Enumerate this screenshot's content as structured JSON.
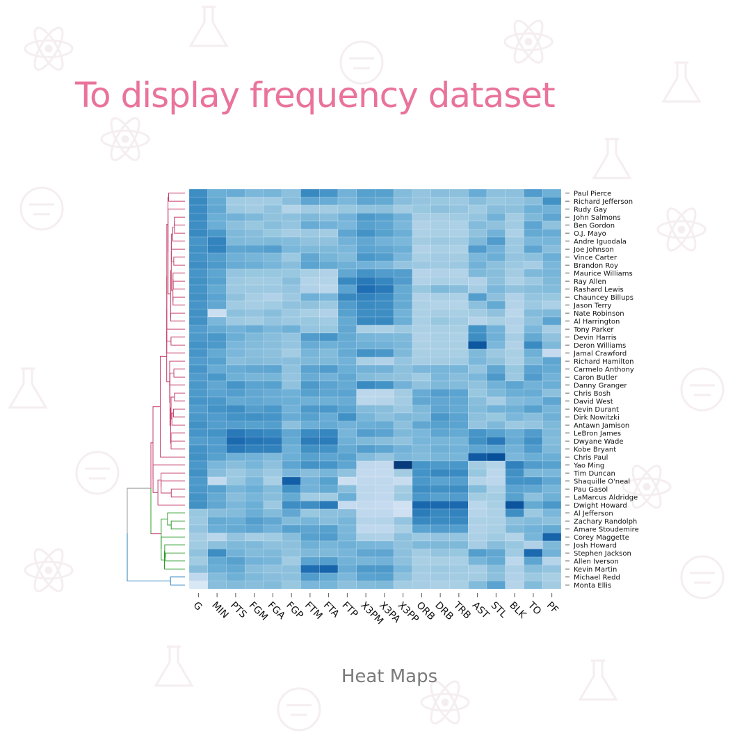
{
  "headline": "To display frequency dataset",
  "caption": "Heat Maps",
  "colors": {
    "headline": "#e9739b",
    "caption": "#7a7a7a",
    "heat_low": "#f7fbff",
    "heat_high": "#08306b",
    "tree_red": "#c43c68",
    "tree_green": "#2e9b2e",
    "tree_blue": "#2a7fbf",
    "tree_gray": "#999999",
    "background_doodles": "#f5eef1"
  },
  "background_icons": [
    "atom-icon",
    "flask-icon",
    "rocket-icon",
    "magnet-icon",
    "lightbulb-icon",
    "molecule-icon",
    "dna-icon",
    "beaker-icon"
  ],
  "chart_data": {
    "type": "heatmap",
    "title": "",
    "xlabel": "",
    "ylabel": "",
    "color_scale": "Blues",
    "value_range": [
      0,
      1
    ],
    "columns": [
      "G",
      "MIN",
      "PTS",
      "FGM",
      "FGA",
      "FGP",
      "FTM",
      "FTA",
      "FTP",
      "X3PM",
      "X3PA",
      "X3PP",
      "ORB",
      "DRB",
      "TRB",
      "AST",
      "STL",
      "BLK",
      "TO",
      "PF"
    ],
    "rows": [
      "Paul Pierce",
      "Richard Jefferson",
      "Rudy Gay",
      "John Salmons",
      "Ben Gordon",
      "O.J. Mayo",
      "Andre Iguodala",
      "Joe Johnson",
      "Vince Carter",
      "Brandon Roy",
      "Maurice Williams",
      "Ray Allen",
      "Rashard Lewis",
      "Chauncey Billups",
      "Jason Terry",
      "Nate Robinson",
      "Al Harrington",
      "Tony Parker",
      "Devin Harris",
      "Deron Williams",
      "Jamal Crawford",
      "Richard Hamilton",
      "Carmelo Anthony",
      "Caron Butler",
      "Danny Granger",
      "Chris Bosh",
      "David West",
      "Kevin Durant",
      "Dirk Nowitzki",
      "Antawn Jamison",
      "LeBron James",
      "Dwyane Wade",
      "Kobe Bryant",
      "Chris Paul",
      "Yao Ming",
      "Tim Duncan",
      "Shaquille O'neal",
      "Pau Gasol",
      "LaMarcus Aldridge",
      "Dwight Howard",
      "Al Jefferson",
      "Zachary Randolph",
      "Amare Stoudemire",
      "Corey Maggette",
      "Josh Howard",
      "Stephen Jackson",
      "Allen Iverson",
      "Kevin Martin",
      "Michael Redd",
      "Monta Ellis"
    ],
    "values": [
      [
        0.64,
        0.5,
        0.51,
        0.46,
        0.47,
        0.42,
        0.66,
        0.61,
        0.48,
        0.56,
        0.56,
        0.44,
        0.4,
        0.43,
        0.42,
        0.51,
        0.42,
        0.42,
        0.58,
        0.49
      ],
      [
        0.66,
        0.52,
        0.37,
        0.36,
        0.37,
        0.43,
        0.54,
        0.51,
        0.46,
        0.54,
        0.52,
        0.43,
        0.4,
        0.39,
        0.38,
        0.43,
        0.39,
        0.4,
        0.43,
        0.63
      ],
      [
        0.65,
        0.53,
        0.38,
        0.36,
        0.41,
        0.31,
        0.37,
        0.36,
        0.39,
        0.41,
        0.42,
        0.36,
        0.39,
        0.42,
        0.4,
        0.37,
        0.43,
        0.42,
        0.49,
        0.48
      ],
      [
        0.65,
        0.5,
        0.48,
        0.45,
        0.41,
        0.42,
        0.45,
        0.43,
        0.48,
        0.59,
        0.56,
        0.48,
        0.35,
        0.35,
        0.37,
        0.4,
        0.48,
        0.36,
        0.45,
        0.54
      ],
      [
        0.64,
        0.5,
        0.42,
        0.39,
        0.43,
        0.4,
        0.51,
        0.48,
        0.46,
        0.56,
        0.54,
        0.46,
        0.32,
        0.34,
        0.33,
        0.44,
        0.41,
        0.37,
        0.54,
        0.41
      ],
      [
        0.66,
        0.6,
        0.45,
        0.43,
        0.39,
        0.35,
        0.38,
        0.36,
        0.54,
        0.62,
        0.56,
        0.5,
        0.33,
        0.34,
        0.33,
        0.41,
        0.48,
        0.33,
        0.52,
        0.51
      ],
      [
        0.61,
        0.68,
        0.45,
        0.44,
        0.45,
        0.44,
        0.41,
        0.41,
        0.48,
        0.53,
        0.48,
        0.46,
        0.36,
        0.38,
        0.37,
        0.45,
        0.58,
        0.38,
        0.46,
        0.47
      ],
      [
        0.63,
        0.68,
        0.54,
        0.55,
        0.57,
        0.46,
        0.45,
        0.45,
        0.46,
        0.55,
        0.53,
        0.5,
        0.32,
        0.34,
        0.33,
        0.58,
        0.48,
        0.38,
        0.54,
        0.43
      ],
      [
        0.62,
        0.57,
        0.49,
        0.47,
        0.45,
        0.38,
        0.53,
        0.47,
        0.44,
        0.6,
        0.57,
        0.46,
        0.34,
        0.37,
        0.36,
        0.46,
        0.5,
        0.4,
        0.42,
        0.5
      ],
      [
        0.64,
        0.59,
        0.51,
        0.5,
        0.47,
        0.43,
        0.55,
        0.52,
        0.49,
        0.48,
        0.46,
        0.4,
        0.38,
        0.37,
        0.38,
        0.48,
        0.42,
        0.38,
        0.35,
        0.46
      ],
      [
        0.61,
        0.54,
        0.4,
        0.39,
        0.39,
        0.39,
        0.34,
        0.32,
        0.53,
        0.62,
        0.58,
        0.57,
        0.3,
        0.32,
        0.31,
        0.45,
        0.43,
        0.36,
        0.45,
        0.47
      ],
      [
        0.63,
        0.56,
        0.38,
        0.36,
        0.37,
        0.43,
        0.31,
        0.31,
        0.66,
        0.72,
        0.67,
        0.58,
        0.32,
        0.34,
        0.33,
        0.32,
        0.42,
        0.33,
        0.38,
        0.45
      ],
      [
        0.62,
        0.52,
        0.38,
        0.38,
        0.38,
        0.4,
        0.32,
        0.29,
        0.55,
        0.76,
        0.72,
        0.52,
        0.39,
        0.45,
        0.43,
        0.35,
        0.46,
        0.41,
        0.43,
        0.44
      ],
      [
        0.63,
        0.55,
        0.41,
        0.35,
        0.32,
        0.38,
        0.49,
        0.46,
        0.66,
        0.68,
        0.65,
        0.52,
        0.32,
        0.34,
        0.33,
        0.57,
        0.42,
        0.32,
        0.4,
        0.39
      ],
      [
        0.61,
        0.53,
        0.37,
        0.35,
        0.37,
        0.41,
        0.41,
        0.38,
        0.58,
        0.65,
        0.64,
        0.52,
        0.33,
        0.31,
        0.31,
        0.42,
        0.52,
        0.31,
        0.38,
        0.33
      ],
      [
        0.63,
        0.22,
        0.42,
        0.4,
        0.43,
        0.38,
        0.34,
        0.32,
        0.56,
        0.64,
        0.64,
        0.48,
        0.33,
        0.35,
        0.34,
        0.36,
        0.41,
        0.29,
        0.44,
        0.45
      ],
      [
        0.63,
        0.46,
        0.38,
        0.36,
        0.4,
        0.38,
        0.39,
        0.37,
        0.52,
        0.66,
        0.66,
        0.5,
        0.34,
        0.39,
        0.37,
        0.3,
        0.34,
        0.32,
        0.41,
        0.55
      ],
      [
        0.58,
        0.52,
        0.48,
        0.51,
        0.46,
        0.49,
        0.4,
        0.39,
        0.53,
        0.34,
        0.33,
        0.38,
        0.33,
        0.34,
        0.34,
        0.62,
        0.48,
        0.31,
        0.46,
        0.35
      ],
      [
        0.59,
        0.6,
        0.5,
        0.45,
        0.43,
        0.4,
        0.58,
        0.61,
        0.52,
        0.47,
        0.46,
        0.45,
        0.32,
        0.34,
        0.33,
        0.64,
        0.49,
        0.35,
        0.52,
        0.41
      ],
      [
        0.62,
        0.59,
        0.46,
        0.44,
        0.43,
        0.4,
        0.51,
        0.49,
        0.51,
        0.49,
        0.48,
        0.46,
        0.33,
        0.34,
        0.34,
        0.85,
        0.46,
        0.32,
        0.65,
        0.45
      ],
      [
        0.61,
        0.52,
        0.46,
        0.43,
        0.42,
        0.36,
        0.47,
        0.44,
        0.52,
        0.62,
        0.6,
        0.45,
        0.34,
        0.34,
        0.34,
        0.45,
        0.38,
        0.34,
        0.49,
        0.25
      ],
      [
        0.58,
        0.56,
        0.43,
        0.44,
        0.43,
        0.43,
        0.45,
        0.45,
        0.48,
        0.34,
        0.32,
        0.4,
        0.35,
        0.36,
        0.37,
        0.46,
        0.41,
        0.33,
        0.45,
        0.54
      ],
      [
        0.61,
        0.51,
        0.51,
        0.53,
        0.54,
        0.41,
        0.55,
        0.58,
        0.5,
        0.48,
        0.48,
        0.42,
        0.46,
        0.47,
        0.47,
        0.4,
        0.53,
        0.39,
        0.55,
        0.52
      ],
      [
        0.58,
        0.6,
        0.49,
        0.47,
        0.47,
        0.4,
        0.51,
        0.48,
        0.53,
        0.44,
        0.42,
        0.41,
        0.37,
        0.46,
        0.43,
        0.46,
        0.59,
        0.38,
        0.58,
        0.48
      ],
      [
        0.6,
        0.53,
        0.61,
        0.55,
        0.56,
        0.41,
        0.59,
        0.55,
        0.52,
        0.65,
        0.62,
        0.48,
        0.41,
        0.45,
        0.44,
        0.41,
        0.48,
        0.54,
        0.48,
        0.5
      ],
      [
        0.59,
        0.55,
        0.57,
        0.53,
        0.51,
        0.49,
        0.56,
        0.54,
        0.55,
        0.28,
        0.28,
        0.36,
        0.51,
        0.57,
        0.55,
        0.39,
        0.45,
        0.5,
        0.51,
        0.42
      ],
      [
        0.61,
        0.6,
        0.52,
        0.53,
        0.51,
        0.5,
        0.49,
        0.49,
        0.51,
        0.29,
        0.3,
        0.36,
        0.53,
        0.53,
        0.53,
        0.43,
        0.35,
        0.44,
        0.46,
        0.54
      ],
      [
        0.58,
        0.62,
        0.64,
        0.57,
        0.6,
        0.48,
        0.59,
        0.6,
        0.55,
        0.44,
        0.43,
        0.38,
        0.45,
        0.54,
        0.52,
        0.44,
        0.48,
        0.49,
        0.56,
        0.47
      ],
      [
        0.6,
        0.58,
        0.62,
        0.63,
        0.61,
        0.51,
        0.56,
        0.51,
        0.63,
        0.47,
        0.42,
        0.45,
        0.44,
        0.6,
        0.55,
        0.42,
        0.39,
        0.46,
        0.43,
        0.49
      ],
      [
        0.63,
        0.57,
        0.57,
        0.56,
        0.57,
        0.42,
        0.5,
        0.52,
        0.48,
        0.5,
        0.51,
        0.42,
        0.53,
        0.56,
        0.55,
        0.4,
        0.45,
        0.38,
        0.4,
        0.45
      ],
      [
        0.61,
        0.62,
        0.72,
        0.68,
        0.66,
        0.53,
        0.65,
        0.67,
        0.47,
        0.57,
        0.55,
        0.45,
        0.46,
        0.54,
        0.52,
        0.61,
        0.56,
        0.5,
        0.58,
        0.45
      ],
      [
        0.57,
        0.58,
        0.78,
        0.74,
        0.72,
        0.52,
        0.71,
        0.71,
        0.49,
        0.45,
        0.43,
        0.41,
        0.47,
        0.47,
        0.47,
        0.63,
        0.72,
        0.52,
        0.63,
        0.44
      ],
      [
        0.62,
        0.58,
        0.72,
        0.69,
        0.69,
        0.49,
        0.63,
        0.62,
        0.52,
        0.57,
        0.54,
        0.48,
        0.45,
        0.49,
        0.48,
        0.54,
        0.54,
        0.48,
        0.58,
        0.45
      ],
      [
        0.63,
        0.56,
        0.49,
        0.48,
        0.45,
        0.5,
        0.56,
        0.54,
        0.56,
        0.44,
        0.4,
        0.46,
        0.44,
        0.47,
        0.47,
        0.84,
        0.88,
        0.46,
        0.5,
        0.5
      ],
      [
        0.6,
        0.46,
        0.43,
        0.47,
        0.42,
        0.54,
        0.62,
        0.61,
        0.54,
        0.27,
        0.26,
        0.96,
        0.61,
        0.59,
        0.6,
        0.36,
        0.31,
        0.69,
        0.58,
        0.56
      ],
      [
        0.63,
        0.43,
        0.38,
        0.42,
        0.38,
        0.46,
        0.43,
        0.47,
        0.41,
        0.26,
        0.26,
        0.36,
        0.62,
        0.66,
        0.65,
        0.39,
        0.28,
        0.63,
        0.45,
        0.46
      ],
      [
        0.59,
        0.26,
        0.39,
        0.46,
        0.34,
        0.82,
        0.48,
        0.56,
        0.22,
        0.27,
        0.27,
        0.24,
        0.6,
        0.55,
        0.57,
        0.31,
        0.28,
        0.62,
        0.62,
        0.53
      ],
      [
        0.6,
        0.56,
        0.47,
        0.5,
        0.44,
        0.62,
        0.48,
        0.52,
        0.43,
        0.28,
        0.27,
        0.36,
        0.64,
        0.63,
        0.64,
        0.44,
        0.33,
        0.55,
        0.53,
        0.47
      ],
      [
        0.62,
        0.52,
        0.43,
        0.47,
        0.43,
        0.52,
        0.37,
        0.37,
        0.5,
        0.28,
        0.27,
        0.38,
        0.6,
        0.56,
        0.58,
        0.36,
        0.36,
        0.56,
        0.42,
        0.49
      ],
      [
        0.63,
        0.53,
        0.46,
        0.5,
        0.38,
        0.64,
        0.64,
        0.72,
        0.25,
        0.26,
        0.25,
        0.2,
        0.79,
        0.78,
        0.78,
        0.29,
        0.34,
        0.86,
        0.52,
        0.6
      ],
      [
        0.39,
        0.43,
        0.44,
        0.5,
        0.44,
        0.53,
        0.39,
        0.42,
        0.43,
        0.27,
        0.27,
        0.21,
        0.71,
        0.66,
        0.68,
        0.3,
        0.33,
        0.64,
        0.38,
        0.46
      ],
      [
        0.38,
        0.52,
        0.5,
        0.57,
        0.53,
        0.44,
        0.47,
        0.43,
        0.47,
        0.3,
        0.31,
        0.4,
        0.66,
        0.65,
        0.66,
        0.33,
        0.33,
        0.42,
        0.44,
        0.42
      ],
      [
        0.4,
        0.5,
        0.52,
        0.54,
        0.48,
        0.56,
        0.54,
        0.56,
        0.46,
        0.27,
        0.27,
        0.34,
        0.55,
        0.58,
        0.57,
        0.32,
        0.34,
        0.45,
        0.48,
        0.52
      ],
      [
        0.35,
        0.29,
        0.4,
        0.35,
        0.37,
        0.43,
        0.56,
        0.58,
        0.47,
        0.33,
        0.32,
        0.42,
        0.38,
        0.4,
        0.4,
        0.33,
        0.37,
        0.31,
        0.47,
        0.8
      ],
      [
        0.37,
        0.42,
        0.45,
        0.45,
        0.42,
        0.42,
        0.49,
        0.47,
        0.49,
        0.47,
        0.46,
        0.41,
        0.45,
        0.45,
        0.45,
        0.35,
        0.43,
        0.39,
        0.32,
        0.45
      ],
      [
        0.41,
        0.64,
        0.48,
        0.44,
        0.45,
        0.41,
        0.45,
        0.45,
        0.47,
        0.53,
        0.54,
        0.42,
        0.36,
        0.4,
        0.39,
        0.57,
        0.53,
        0.37,
        0.78,
        0.48
      ],
      [
        0.37,
        0.52,
        0.56,
        0.48,
        0.47,
        0.37,
        0.55,
        0.57,
        0.48,
        0.47,
        0.48,
        0.42,
        0.34,
        0.34,
        0.34,
        0.47,
        0.52,
        0.28,
        0.54,
        0.3
      ],
      [
        0.43,
        0.5,
        0.52,
        0.43,
        0.41,
        0.42,
        0.76,
        0.8,
        0.51,
        0.59,
        0.59,
        0.46,
        0.36,
        0.38,
        0.37,
        0.35,
        0.43,
        0.33,
        0.43,
        0.4
      ],
      [
        0.27,
        0.44,
        0.49,
        0.45,
        0.43,
        0.42,
        0.58,
        0.52,
        0.46,
        0.55,
        0.56,
        0.42,
        0.35,
        0.37,
        0.36,
        0.36,
        0.42,
        0.32,
        0.38,
        0.34
      ],
      [
        0.15,
        0.43,
        0.44,
        0.43,
        0.44,
        0.39,
        0.46,
        0.47,
        0.42,
        0.44,
        0.45,
        0.36,
        0.35,
        0.33,
        0.34,
        0.44,
        0.55,
        0.3,
        0.44,
        0.36
      ]
    ],
    "row_dendrogram_groups": [
      {
        "color": "tree_red",
        "rows": [
          "Paul Pierce",
          "Richard Jefferson",
          "Rudy Gay",
          "John Salmons",
          "Ben Gordon",
          "O.J. Mayo",
          "Andre Iguodala",
          "Joe Johnson",
          "Vince Carter",
          "Brandon Roy",
          "Maurice Williams",
          "Ray Allen",
          "Rashard Lewis",
          "Chauncey Billups",
          "Jason Terry",
          "Nate Robinson",
          "Al Harrington",
          "Tony Parker",
          "Devin Harris",
          "Deron Williams",
          "Jamal Crawford",
          "Richard Hamilton",
          "Carmelo Anthony",
          "Caron Butler",
          "Danny Granger",
          "Chris Bosh",
          "David West",
          "Kevin Durant",
          "Dirk Nowitzki",
          "Antawn Jamison",
          "LeBron James",
          "Dwyane Wade",
          "Kobe Bryant",
          "Chris Paul",
          "Yao Ming",
          "Tim Duncan",
          "Shaquille O'neal",
          "Pau Gasol",
          "LaMarcus Aldridge",
          "Dwight Howard"
        ]
      },
      {
        "color": "tree_green",
        "rows": [
          "Al Jefferson",
          "Zachary Randolph",
          "Amare Stoudemire",
          "Corey Maggette",
          "Josh Howard",
          "Stephen Jackson",
          "Allen Iverson",
          "Kevin Martin"
        ]
      },
      {
        "color": "tree_blue",
        "rows": [
          "Michael Redd",
          "Monta Ellis"
        ]
      }
    ],
    "grid": false,
    "legend": "none"
  }
}
